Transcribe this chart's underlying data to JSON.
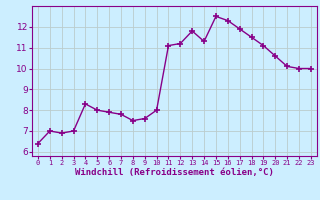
{
  "x": [
    0,
    1,
    2,
    3,
    4,
    5,
    6,
    7,
    8,
    9,
    10,
    11,
    12,
    13,
    14,
    15,
    16,
    17,
    18,
    19,
    20,
    21,
    22,
    23
  ],
  "y": [
    6.4,
    7.0,
    6.9,
    7.0,
    8.3,
    8.0,
    7.9,
    7.8,
    7.5,
    7.6,
    8.0,
    11.1,
    11.2,
    11.8,
    11.3,
    12.5,
    12.3,
    11.9,
    11.5,
    11.1,
    10.6,
    10.1,
    10.0,
    10.0
  ],
  "line_color": "#880088",
  "marker": "+",
  "marker_size": 4,
  "line_width": 1.0,
  "bg_color": "#cceeff",
  "grid_color": "#bbcccc",
  "xlabel": "Windchill (Refroidissement éolien,°C)",
  "xlabel_color": "#880088",
  "tick_color": "#880088",
  "ylabel_ticks": [
    6,
    7,
    8,
    9,
    10,
    11,
    12
  ],
  "xtick_labels": [
    "0",
    "1",
    "2",
    "3",
    "4",
    "5",
    "6",
    "7",
    "8",
    "9",
    "10",
    "11",
    "12",
    "13",
    "14",
    "15",
    "16",
    "17",
    "18",
    "19",
    "20",
    "21",
    "22",
    "23"
  ],
  "ylim": [
    5.8,
    13.0
  ],
  "xlim": [
    -0.5,
    23.5
  ],
  "axis_color": "#880088"
}
